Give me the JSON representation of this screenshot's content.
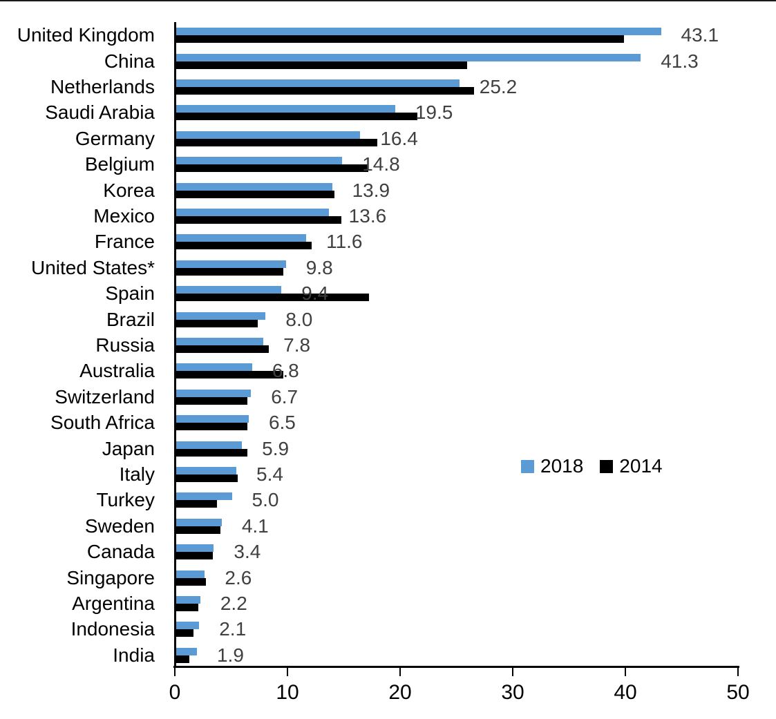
{
  "chart_data": {
    "type": "bar",
    "orientation": "horizontal",
    "title": "",
    "xlabel": "",
    "ylabel": "",
    "xlim": [
      0,
      50
    ],
    "x_ticks": [
      0,
      10,
      20,
      30,
      40,
      50
    ],
    "grid": false,
    "legend_position": "middle-right",
    "categories": [
      "United Kingdom",
      "China",
      "Netherlands",
      "Saudi Arabia",
      "Germany",
      "Belgium",
      "Korea",
      "Mexico",
      "France",
      "United States*",
      "Spain",
      "Brazil",
      "Russia",
      "Australia",
      "Switzerland",
      "South Africa",
      "Japan",
      "Italy",
      "Turkey",
      "Sweden",
      "Canada",
      "Singapore",
      "Argentina",
      "Indonesia",
      "India"
    ],
    "series": [
      {
        "name": "2018",
        "color": "#5B9BD5",
        "values": [
          43.1,
          41.3,
          25.2,
          19.5,
          16.4,
          14.8,
          13.9,
          13.6,
          11.6,
          9.8,
          9.4,
          8.0,
          7.8,
          6.8,
          6.7,
          6.5,
          5.9,
          5.4,
          5.0,
          4.1,
          3.4,
          2.6,
          2.2,
          2.1,
          1.9
        ]
      },
      {
        "name": "2014",
        "color": "#000000",
        "values": [
          39.8,
          25.9,
          26.5,
          21.5,
          17.9,
          17.1,
          14.1,
          14.7,
          12.1,
          9.6,
          17.2,
          7.3,
          8.3,
          9.6,
          6.4,
          6.4,
          6.4,
          5.5,
          3.7,
          4.0,
          3.3,
          2.7,
          2.0,
          1.6,
          1.2
        ]
      }
    ],
    "data_labels": {
      "series": "2018",
      "color": "#404040",
      "values": [
        "43.1",
        "41.3",
        "25.2",
        "19.5",
        "16.4",
        "14.8",
        "13.9",
        "13.6",
        "11.6",
        "9.8",
        "9.4",
        "8.0",
        "7.8",
        "6.8",
        "6.7",
        "6.5",
        "5.9",
        "5.4",
        "5.0",
        "4.1",
        "3.4",
        "2.6",
        "2.2",
        "2.1",
        "1.9"
      ]
    }
  },
  "colors": {
    "series_2018": "#5B9BD5",
    "series_2014": "#000000",
    "data_label": "#404040",
    "axis": "#000000",
    "background": "#FFFFFF"
  }
}
